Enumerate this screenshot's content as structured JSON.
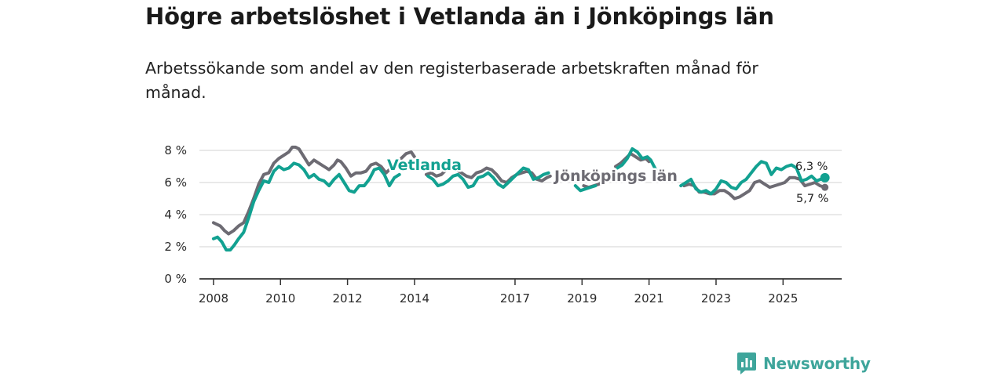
{
  "header": {
    "title": "Högre arbetslöshet i Vetlanda än i Jönköpings län",
    "subtitle": "Arbetssökande som andel av den registerbaserade arbetskraften månad för månad."
  },
  "brand": {
    "name": "Newsworthy"
  },
  "colors": {
    "vetlanda": "#12a191",
    "lan": "#6d6b73",
    "grid": "#dcdcdc",
    "axis": "#333333"
  },
  "chart_data": {
    "type": "line",
    "title": "Högre arbetslöshet i Vetlanda än i Jönköpings län",
    "subtitle": "Arbetssökande som andel av den registerbaserade arbetskraften månad för månad.",
    "xlabel": "",
    "ylabel": "",
    "xlim": [
      2007.58,
      2026.75
    ],
    "ylim": [
      0,
      8
    ],
    "grid": true,
    "y_ticks": [
      {
        "value": 0,
        "label": "0 %"
      },
      {
        "value": 2,
        "label": "2 %"
      },
      {
        "value": 4,
        "label": "4 %"
      },
      {
        "value": 6,
        "label": "6 %"
      },
      {
        "value": 8,
        "label": "8 %"
      }
    ],
    "x_ticks": [
      {
        "value": 2008,
        "label": "2008"
      },
      {
        "value": 2010,
        "label": "2010"
      },
      {
        "value": 2012,
        "label": "2012"
      },
      {
        "value": 2014,
        "label": "2014"
      },
      {
        "value": 2017,
        "label": "2017"
      },
      {
        "value": 2019,
        "label": "2019"
      },
      {
        "value": 2021,
        "label": "2021"
      },
      {
        "value": 2023,
        "label": "2023"
      },
      {
        "value": 2025,
        "label": "2025"
      }
    ],
    "series": [
      {
        "key": "lan",
        "name": "Jönköpings län",
        "end_label": "5,7 %",
        "points": [
          [
            2008.0,
            3.5
          ],
          [
            2008.2,
            3.3
          ],
          [
            2008.33,
            3.0
          ],
          [
            2008.45,
            2.8
          ],
          [
            2008.6,
            3.0
          ],
          [
            2008.75,
            3.3
          ],
          [
            2008.9,
            3.5
          ],
          [
            2009.05,
            4.2
          ],
          [
            2009.2,
            5.0
          ],
          [
            2009.35,
            5.9
          ],
          [
            2009.5,
            6.5
          ],
          [
            2009.65,
            6.6
          ],
          [
            2009.8,
            7.2
          ],
          [
            2009.95,
            7.5
          ],
          [
            2010.1,
            7.7
          ],
          [
            2010.25,
            7.9
          ],
          [
            2010.35,
            8.2
          ],
          [
            2010.45,
            8.2
          ],
          [
            2010.55,
            8.1
          ],
          [
            2010.7,
            7.6
          ],
          [
            2010.85,
            7.1
          ],
          [
            2011.0,
            7.4
          ],
          [
            2011.15,
            7.2
          ],
          [
            2011.3,
            7.0
          ],
          [
            2011.45,
            6.8
          ],
          [
            2011.6,
            7.1
          ],
          [
            2011.7,
            7.4
          ],
          [
            2011.8,
            7.3
          ],
          [
            2011.95,
            6.9
          ],
          [
            2012.1,
            6.4
          ],
          [
            2012.25,
            6.6
          ],
          [
            2012.4,
            6.6
          ],
          [
            2012.55,
            6.7
          ],
          [
            2012.7,
            7.1
          ],
          [
            2012.85,
            7.2
          ],
          [
            2013.0,
            7.0
          ],
          [
            2013.15,
            6.6
          ],
          [
            2013.3,
            6.9
          ],
          [
            2013.45,
            7.2
          ],
          [
            2013.6,
            7.5
          ],
          [
            2013.75,
            7.8
          ],
          [
            2013.9,
            7.9
          ],
          [
            2014.0,
            7.6
          ]
        ],
        "points_b": [
          [
            2014.35,
            6.5
          ],
          [
            2014.5,
            6.6
          ],
          [
            2014.65,
            6.4
          ],
          [
            2014.8,
            6.5
          ],
          [
            2014.95,
            6.8
          ],
          [
            2015.1,
            7.0
          ],
          [
            2015.25,
            6.8
          ],
          [
            2015.4,
            6.6
          ],
          [
            2015.55,
            6.4
          ],
          [
            2015.7,
            6.3
          ],
          [
            2015.85,
            6.6
          ],
          [
            2016.0,
            6.7
          ],
          [
            2016.15,
            6.9
          ],
          [
            2016.3,
            6.8
          ],
          [
            2016.45,
            6.5
          ],
          [
            2016.6,
            6.1
          ],
          [
            2016.75,
            6.0
          ],
          [
            2016.9,
            6.3
          ],
          [
            2017.05,
            6.5
          ],
          [
            2017.2,
            6.6
          ],
          [
            2017.35,
            6.7
          ],
          [
            2017.5,
            6.6
          ],
          [
            2017.65,
            6.2
          ],
          [
            2017.8,
            6.1
          ],
          [
            2017.95,
            6.3
          ],
          [
            2018.05,
            6.4
          ]
        ],
        "points_c": [
          [
            2019.05,
            5.8
          ],
          [
            2019.2,
            5.7
          ],
          [
            2019.35,
            5.8
          ],
          [
            2019.5,
            5.9
          ],
          [
            2019.6,
            6.0
          ]
        ],
        "points_d": [
          [
            2020.0,
            7.0
          ],
          [
            2020.15,
            7.2
          ],
          [
            2020.3,
            7.5
          ],
          [
            2020.45,
            7.8
          ],
          [
            2020.6,
            7.6
          ],
          [
            2020.75,
            7.4
          ],
          [
            2020.9,
            7.5
          ],
          [
            2021.0,
            7.3
          ]
        ],
        "points_e": [
          [
            2022.05,
            5.8
          ],
          [
            2022.2,
            5.9
          ],
          [
            2022.35,
            5.8
          ],
          [
            2022.5,
            5.4
          ],
          [
            2022.65,
            5.4
          ],
          [
            2022.8,
            5.3
          ],
          [
            2022.95,
            5.3
          ],
          [
            2023.1,
            5.5
          ],
          [
            2023.25,
            5.5
          ],
          [
            2023.4,
            5.3
          ],
          [
            2023.55,
            5.0
          ],
          [
            2023.7,
            5.1
          ],
          [
            2023.85,
            5.3
          ],
          [
            2024.0,
            5.5
          ],
          [
            2024.15,
            6.0
          ],
          [
            2024.3,
            6.1
          ],
          [
            2024.45,
            5.9
          ],
          [
            2024.6,
            5.7
          ],
          [
            2024.75,
            5.8
          ],
          [
            2024.9,
            5.9
          ],
          [
            2025.05,
            6.0
          ],
          [
            2025.2,
            6.3
          ],
          [
            2025.35,
            6.3
          ],
          [
            2025.5,
            6.2
          ],
          [
            2025.65,
            5.8
          ],
          [
            2025.8,
            5.9
          ],
          [
            2025.95,
            6.0
          ],
          [
            2026.1,
            5.8
          ],
          [
            2026.25,
            5.7
          ]
        ]
      },
      {
        "key": "vetlanda",
        "name": "Vetlanda",
        "end_label": "6,3 %",
        "points": [
          [
            2008.0,
            2.5
          ],
          [
            2008.12,
            2.6
          ],
          [
            2008.25,
            2.3
          ],
          [
            2008.38,
            1.8
          ],
          [
            2008.5,
            1.8
          ],
          [
            2008.62,
            2.1
          ],
          [
            2008.75,
            2.5
          ],
          [
            2008.9,
            2.9
          ],
          [
            2009.05,
            3.8
          ],
          [
            2009.2,
            4.8
          ],
          [
            2009.35,
            5.5
          ],
          [
            2009.5,
            6.1
          ],
          [
            2009.65,
            6.0
          ],
          [
            2009.8,
            6.7
          ],
          [
            2009.95,
            7.0
          ],
          [
            2010.1,
            6.8
          ],
          [
            2010.25,
            6.9
          ],
          [
            2010.4,
            7.2
          ],
          [
            2010.55,
            7.1
          ],
          [
            2010.7,
            6.8
          ],
          [
            2010.85,
            6.3
          ],
          [
            2011.0,
            6.5
          ],
          [
            2011.15,
            6.2
          ],
          [
            2011.3,
            6.1
          ],
          [
            2011.45,
            5.8
          ],
          [
            2011.6,
            6.2
          ],
          [
            2011.75,
            6.5
          ],
          [
            2011.9,
            6.0
          ],
          [
            2012.05,
            5.5
          ],
          [
            2012.2,
            5.4
          ],
          [
            2012.35,
            5.8
          ],
          [
            2012.5,
            5.8
          ],
          [
            2012.65,
            6.2
          ],
          [
            2012.8,
            6.8
          ],
          [
            2012.95,
            6.9
          ],
          [
            2013.1,
            6.5
          ],
          [
            2013.25,
            5.8
          ],
          [
            2013.4,
            6.3
          ],
          [
            2013.55,
            6.5
          ]
        ],
        "points_b": [
          [
            2014.4,
            6.4
          ],
          [
            2014.55,
            6.2
          ],
          [
            2014.7,
            5.8
          ],
          [
            2014.85,
            5.9
          ],
          [
            2015.0,
            6.1
          ],
          [
            2015.15,
            6.4
          ],
          [
            2015.3,
            6.5
          ],
          [
            2015.45,
            6.2
          ],
          [
            2015.6,
            5.7
          ],
          [
            2015.75,
            5.8
          ],
          [
            2015.9,
            6.3
          ],
          [
            2016.05,
            6.4
          ],
          [
            2016.2,
            6.6
          ],
          [
            2016.35,
            6.3
          ],
          [
            2016.5,
            5.9
          ],
          [
            2016.65,
            5.7
          ],
          [
            2016.8,
            6.0
          ],
          [
            2016.95,
            6.3
          ],
          [
            2017.1,
            6.6
          ],
          [
            2017.25,
            6.9
          ],
          [
            2017.4,
            6.8
          ],
          [
            2017.55,
            6.2
          ],
          [
            2017.7,
            6.3
          ],
          [
            2017.85,
            6.5
          ],
          [
            2018.0,
            6.6
          ]
        ],
        "points_c": [
          [
            2018.8,
            5.8
          ],
          [
            2018.95,
            5.5
          ],
          [
            2019.1,
            5.6
          ],
          [
            2019.25,
            5.7
          ],
          [
            2019.4,
            5.8
          ]
        ],
        "points_d": [
          [
            2020.05,
            6.9
          ],
          [
            2020.2,
            7.1
          ],
          [
            2020.35,
            7.5
          ],
          [
            2020.5,
            8.1
          ],
          [
            2020.65,
            7.9
          ],
          [
            2020.8,
            7.5
          ],
          [
            2020.95,
            7.6
          ],
          [
            2021.05,
            7.4
          ],
          [
            2021.2,
            6.8
          ]
        ],
        "points_e": [
          [
            2021.95,
            5.8
          ],
          [
            2022.1,
            6.0
          ],
          [
            2022.25,
            6.2
          ],
          [
            2022.4,
            5.6
          ],
          [
            2022.55,
            5.4
          ],
          [
            2022.7,
            5.5
          ],
          [
            2022.85,
            5.3
          ],
          [
            2023.0,
            5.6
          ],
          [
            2023.15,
            6.1
          ],
          [
            2023.3,
            6.0
          ],
          [
            2023.45,
            5.7
          ],
          [
            2023.6,
            5.6
          ],
          [
            2023.75,
            6.0
          ],
          [
            2023.9,
            6.2
          ],
          [
            2024.05,
            6.6
          ],
          [
            2024.2,
            7.0
          ],
          [
            2024.35,
            7.3
          ],
          [
            2024.5,
            7.2
          ],
          [
            2024.65,
            6.5
          ],
          [
            2024.8,
            6.9
          ],
          [
            2024.95,
            6.8
          ],
          [
            2025.1,
            7.0
          ],
          [
            2025.25,
            7.1
          ],
          [
            2025.4,
            6.9
          ],
          [
            2025.55,
            6.1
          ],
          [
            2025.7,
            6.2
          ],
          [
            2025.85,
            6.4
          ],
          [
            2026.0,
            6.1
          ],
          [
            2026.25,
            6.3
          ]
        ]
      }
    ],
    "end_points": [
      {
        "series": "Vetlanda",
        "x": 2026.25,
        "y": 6.3,
        "label": "6,3 %"
      },
      {
        "series": "Jönköpings län",
        "x": 2026.25,
        "y": 5.7,
        "label": "5,7 %"
      }
    ]
  }
}
